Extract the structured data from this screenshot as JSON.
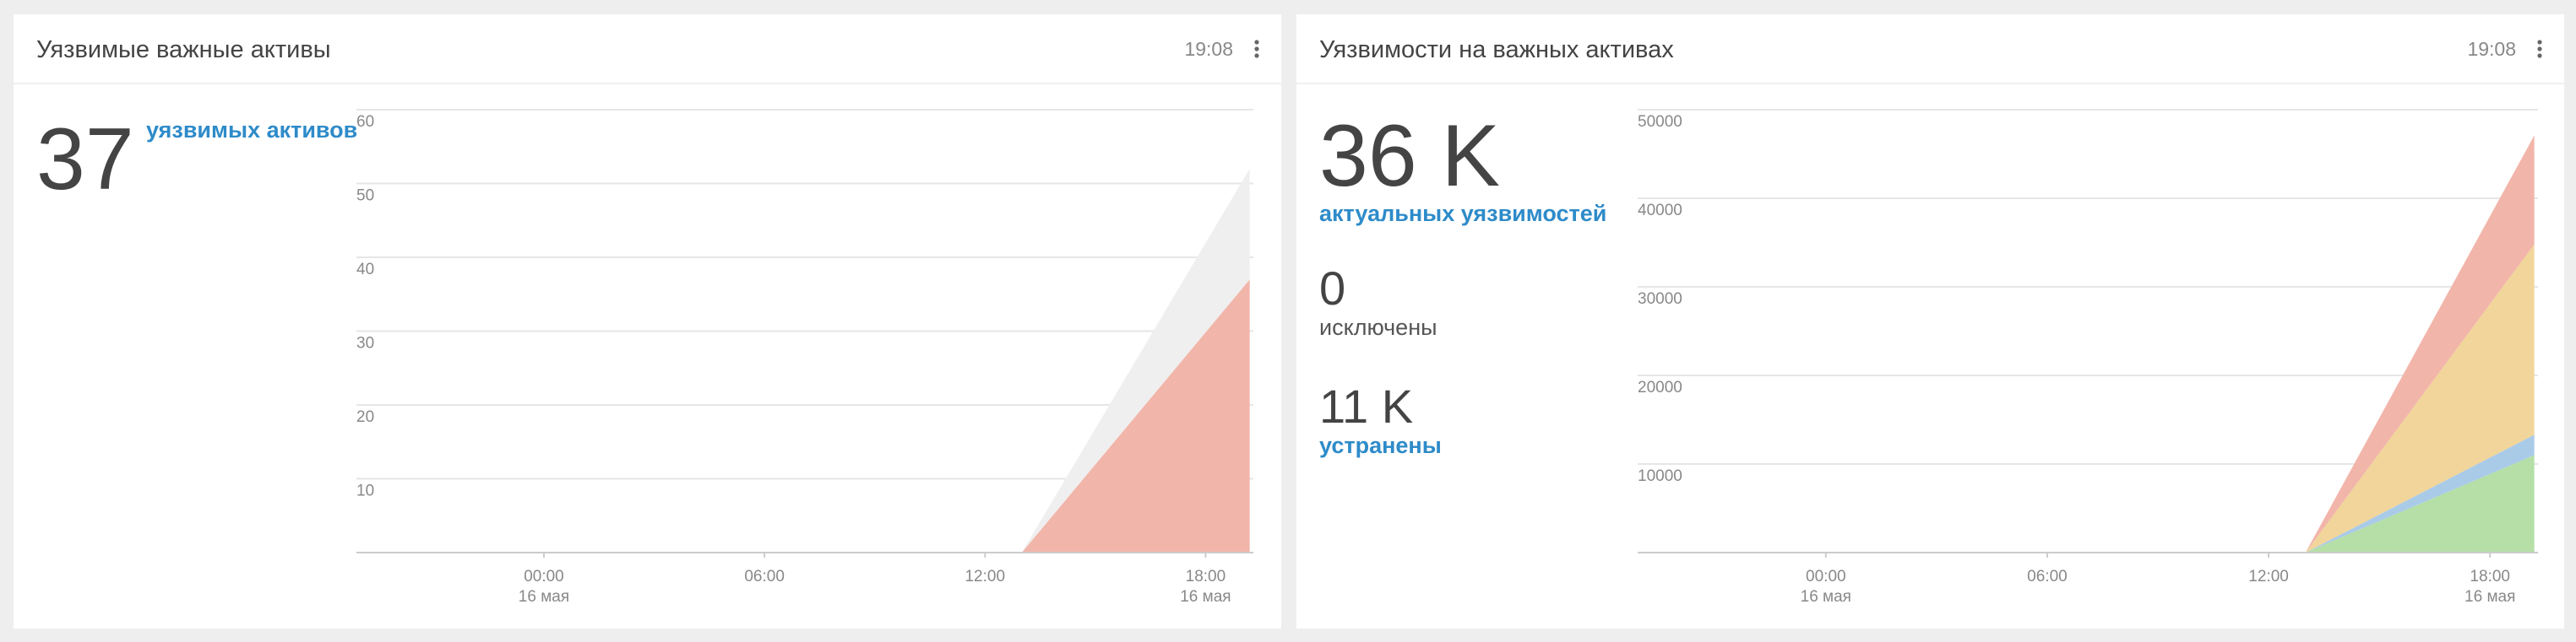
{
  "panels": [
    {
      "title": "Уязвимые важные активы",
      "time": "19:08",
      "stats": [
        {
          "value": "37",
          "label": "уязвимых активов"
        }
      ],
      "chart": {
        "type": "area",
        "stacked": true,
        "x": [
          13,
          19.2
        ],
        "xlim": [
          -5.1,
          19.3
        ],
        "xticks": [
          {
            "value": 0,
            "label": "00:00"
          },
          {
            "value": 6,
            "label": "06:00"
          },
          {
            "value": 12,
            "label": "12:00"
          },
          {
            "value": 18,
            "label": "18:00"
          }
        ],
        "xtick_dates": [
          "16 мая",
          null,
          null,
          "16 мая"
        ],
        "ylim": [
          0,
          60
        ],
        "yticks": [
          10,
          20,
          30,
          40,
          50,
          60
        ],
        "grid": true,
        "series": [
          {
            "color": "#f2b5aa",
            "values": [
              0,
              37
            ]
          },
          {
            "color": "#efefef",
            "values": [
              0,
              15
            ]
          }
        ]
      }
    },
    {
      "title": "Уязвимости на важных активах",
      "time": "19:08",
      "stats": [
        {
          "value": "36 K",
          "label": "актуальных уязвимостей"
        },
        {
          "value": "0",
          "label": "исключены"
        },
        {
          "value": "11 K",
          "label": "устранены"
        }
      ],
      "chart": {
        "type": "area",
        "stacked": true,
        "x": [
          13,
          19.2
        ],
        "xlim": [
          -5.1,
          19.3
        ],
        "xticks": [
          {
            "value": 0,
            "label": "00:00"
          },
          {
            "value": 6,
            "label": "06:00"
          },
          {
            "value": 12,
            "label": "12:00"
          },
          {
            "value": 18,
            "label": "18:00"
          }
        ],
        "xtick_dates": [
          "16 мая",
          null,
          null,
          "16 мая"
        ],
        "ylim": [
          0,
          50000
        ],
        "yticks": [
          10000,
          20000,
          30000,
          40000,
          50000
        ],
        "grid": true,
        "series": [
          {
            "color": "#b5dfa6",
            "values": [
              0,
              11000
            ]
          },
          {
            "color": "#a9cbe8",
            "values": [
              0,
              2300
            ]
          },
          {
            "color": "#f1d59a",
            "values": [
              0,
              21500
            ]
          },
          {
            "color": "#f2b5aa",
            "values": [
              0,
              12300
            ]
          }
        ]
      }
    }
  ]
}
